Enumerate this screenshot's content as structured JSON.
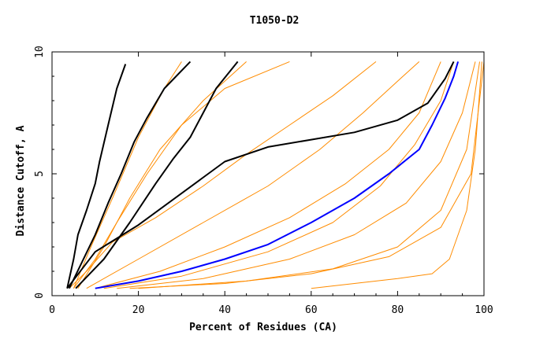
{
  "chart_data": {
    "type": "line",
    "title": "T1050-D2",
    "xlabel": "Percent of Residues (CA)",
    "ylabel": "Distance Cutoff, A",
    "xlim": [
      0,
      100
    ],
    "ylim": [
      0,
      10
    ],
    "x_ticks": [
      0,
      20,
      40,
      60,
      80,
      100
    ],
    "y_ticks": [
      0,
      5,
      10
    ],
    "grid": false,
    "legend": "none",
    "colors": {
      "models": "#ff8c00",
      "highlight_black": "#000000",
      "highlight_blue": "#0000ff"
    },
    "series": [
      {
        "color": "#000000",
        "points": [
          [
            3.5,
            0.3
          ],
          [
            5,
            1.5
          ],
          [
            6,
            2.5
          ],
          [
            8,
            3.5
          ],
          [
            10,
            4.6
          ],
          [
            11,
            5.5
          ],
          [
            13,
            7
          ],
          [
            15,
            8.5
          ],
          [
            17,
            9.5
          ]
        ]
      },
      {
        "color": "#000000",
        "points": [
          [
            4,
            0.3
          ],
          [
            7,
            1.4
          ],
          [
            10,
            2.5
          ],
          [
            13,
            3.8
          ],
          [
            16,
            5
          ],
          [
            19,
            6.3
          ],
          [
            22,
            7.3
          ],
          [
            26,
            8.5
          ],
          [
            32,
            9.6
          ]
        ]
      },
      {
        "color": "#000000",
        "points": [
          [
            5.5,
            0.3
          ],
          [
            12,
            1.5
          ],
          [
            18,
            3
          ],
          [
            24,
            4.6
          ],
          [
            28,
            5.6
          ],
          [
            32,
            6.5
          ],
          [
            35,
            7.5
          ],
          [
            38,
            8.5
          ],
          [
            43,
            9.6
          ]
        ]
      },
      {
        "color": "#000000",
        "points": [
          [
            3.5,
            0.3
          ],
          [
            10,
            1.8
          ],
          [
            20,
            2.9
          ],
          [
            30,
            4.2
          ],
          [
            40,
            5.5
          ],
          [
            50,
            6.1
          ],
          [
            60,
            6.4
          ],
          [
            70,
            6.7
          ],
          [
            80,
            7.2
          ],
          [
            87,
            7.9
          ],
          [
            91,
            8.9
          ],
          [
            93,
            9.6
          ]
        ]
      },
      {
        "color": "#0000ff",
        "points": [
          [
            10,
            0.3
          ],
          [
            20,
            0.6
          ],
          [
            30,
            1
          ],
          [
            40,
            1.5
          ],
          [
            50,
            2.1
          ],
          [
            60,
            3
          ],
          [
            70,
            4
          ],
          [
            78,
            5
          ],
          [
            85,
            6
          ],
          [
            88,
            7
          ],
          [
            91,
            8.1
          ],
          [
            93,
            9
          ],
          [
            94,
            9.6
          ]
        ]
      },
      {
        "color": "#ff8c00",
        "points": [
          [
            5,
            0.3
          ],
          [
            10,
            1.5
          ],
          [
            15,
            3
          ],
          [
            22,
            5
          ],
          [
            30,
            7
          ],
          [
            40,
            8.5
          ],
          [
            55,
            9.6
          ]
        ]
      },
      {
        "color": "#ff8c00",
        "points": [
          [
            6,
            0.3
          ],
          [
            12,
            2
          ],
          [
            18,
            4
          ],
          [
            25,
            6
          ],
          [
            35,
            8
          ],
          [
            45,
            9.6
          ]
        ]
      },
      {
        "color": "#ff8c00",
        "points": [
          [
            5,
            0.3
          ],
          [
            9,
            2
          ],
          [
            14,
            4
          ],
          [
            20,
            6.5
          ],
          [
            26,
            8.5
          ],
          [
            30,
            9.6
          ]
        ]
      },
      {
        "color": "#ff8c00",
        "points": [
          [
            8,
            0.3
          ],
          [
            20,
            1.5
          ],
          [
            35,
            3
          ],
          [
            50,
            4.5
          ],
          [
            62,
            6
          ],
          [
            72,
            7.5
          ],
          [
            80,
            8.8
          ],
          [
            85,
            9.6
          ]
        ]
      },
      {
        "color": "#ff8c00",
        "points": [
          [
            10,
            0.3
          ],
          [
            25,
            1
          ],
          [
            40,
            2
          ],
          [
            55,
            3.2
          ],
          [
            68,
            4.6
          ],
          [
            78,
            6
          ],
          [
            85,
            7.5
          ],
          [
            90,
            9.6
          ]
        ]
      },
      {
        "color": "#ff8c00",
        "points": [
          [
            15,
            0.3
          ],
          [
            35,
            0.7
          ],
          [
            55,
            1.5
          ],
          [
            70,
            2.5
          ],
          [
            82,
            3.8
          ],
          [
            90,
            5.5
          ],
          [
            95,
            7.5
          ],
          [
            98,
            9.6
          ]
        ]
      },
      {
        "color": "#ff8c00",
        "points": [
          [
            20,
            0.3
          ],
          [
            45,
            0.6
          ],
          [
            65,
            1.1
          ],
          [
            80,
            2
          ],
          [
            90,
            3.5
          ],
          [
            96,
            6
          ],
          [
            99,
            9.6
          ]
        ]
      },
      {
        "color": "#ff8c00",
        "points": [
          [
            12,
            0.3
          ],
          [
            30,
            0.8
          ],
          [
            50,
            1.8
          ],
          [
            65,
            3
          ],
          [
            76,
            4.5
          ],
          [
            84,
            6.2
          ],
          [
            90,
            8
          ],
          [
            93,
            9.6
          ]
        ]
      },
      {
        "color": "#ff8c00",
        "points": [
          [
            18,
            0.3
          ],
          [
            40,
            0.5
          ],
          [
            60,
            0.9
          ],
          [
            78,
            1.6
          ],
          [
            90,
            2.8
          ],
          [
            97,
            5
          ],
          [
            100,
            9.6
          ]
        ]
      },
      {
        "color": "#ff8c00",
        "points": [
          [
            4,
            0.3
          ],
          [
            8,
            1
          ],
          [
            14,
            2.2
          ],
          [
            24,
            3.2
          ],
          [
            35,
            4.5
          ],
          [
            45,
            5.8
          ],
          [
            55,
            7
          ],
          [
            65,
            8.2
          ],
          [
            75,
            9.6
          ]
        ]
      },
      {
        "color": "#ff8c00",
        "points": [
          [
            60,
            0.3
          ],
          [
            70,
            0.5
          ],
          [
            80,
            0.7
          ],
          [
            88,
            0.9
          ],
          [
            92,
            1.5
          ],
          [
            96,
            3.5
          ],
          [
            98,
            6
          ],
          [
            99.5,
            9.6
          ]
        ]
      }
    ]
  }
}
